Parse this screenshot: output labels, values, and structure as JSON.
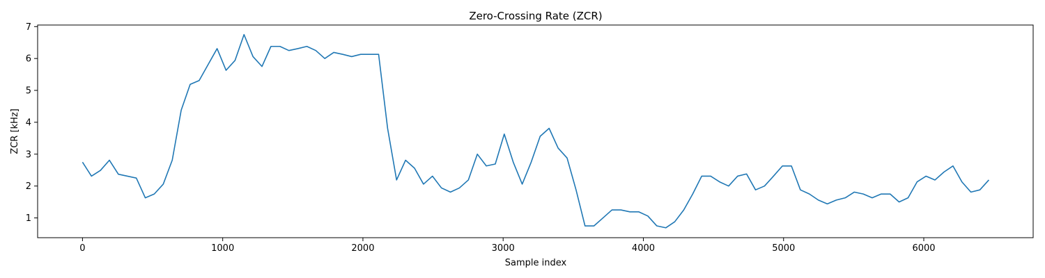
{
  "chart_data": {
    "type": "line",
    "title": "Zero-Crossing Rate (ZCR)",
    "xlabel": "Sample index",
    "ylabel": "ZCR [kHz]",
    "xlim": [
      -320,
      6780
    ],
    "ylim": [
      0.38,
      7.05
    ],
    "xticks": [
      0,
      1000,
      2000,
      3000,
      4000,
      5000,
      6000
    ],
    "yticks": [
      1,
      2,
      3,
      4,
      5,
      6,
      7
    ],
    "grid": false,
    "line_color": "#1f77b4",
    "series": [
      {
        "x": [
          0,
          64,
          128,
          192,
          256,
          320,
          384,
          448,
          512,
          576,
          640,
          704,
          768,
          832,
          896,
          960,
          1024,
          1088,
          1152,
          1216,
          1280,
          1344,
          1408,
          1472,
          1536,
          1600,
          1664,
          1728,
          1792,
          1856,
          1920,
          1984,
          2048,
          2112,
          2176,
          2240,
          2304,
          2368,
          2432,
          2496,
          2560,
          2624,
          2688,
          2752,
          2816,
          2880,
          2944,
          3008,
          3072,
          3136,
          3200,
          3264,
          3328,
          3392,
          3456,
          3520,
          3584,
          3648,
          3712,
          3776,
          3840,
          3904,
          3968,
          4032,
          4096,
          4160,
          4224,
          4288,
          4352,
          4416,
          4480,
          4544,
          4608,
          4672,
          4736,
          4800,
          4864,
          4928,
          4992,
          5056,
          5120,
          5184,
          5248,
          5312,
          5376,
          5440,
          5504,
          5568,
          5632,
          5696,
          5760,
          5824,
          5888,
          5952,
          6016,
          6080,
          6144,
          6208,
          6272,
          6336,
          6400,
          6464
        ],
        "values": [
          2.75,
          2.31,
          2.49,
          2.81,
          2.37,
          2.31,
          2.25,
          1.63,
          1.75,
          2.06,
          2.81,
          4.38,
          5.19,
          5.31,
          5.81,
          6.31,
          5.63,
          5.94,
          6.75,
          6.06,
          5.75,
          6.38,
          6.38,
          6.25,
          6.31,
          6.38,
          6.25,
          6.0,
          6.19,
          6.13,
          6.06,
          6.13,
          6.13,
          6.13,
          3.81,
          2.19,
          2.81,
          2.56,
          2.06,
          2.31,
          1.94,
          1.81,
          1.94,
          2.19,
          3.0,
          2.63,
          2.69,
          3.63,
          2.75,
          2.06,
          2.75,
          3.56,
          3.81,
          3.19,
          2.88,
          1.88,
          0.75,
          0.75,
          1.0,
          1.25,
          1.25,
          1.19,
          1.19,
          1.06,
          0.75,
          0.69,
          0.88,
          1.25,
          1.75,
          2.31,
          2.31,
          2.13,
          2.0,
          2.31,
          2.38,
          1.88,
          2.0,
          2.31,
          2.63,
          2.63,
          1.88,
          1.75,
          1.56,
          1.44,
          1.56,
          1.63,
          1.81,
          1.75,
          1.63,
          1.75,
          1.75,
          1.5,
          1.63,
          2.13,
          2.31,
          2.19,
          2.44,
          2.63,
          2.13,
          1.81,
          1.88,
          2.19
        ]
      }
    ]
  }
}
